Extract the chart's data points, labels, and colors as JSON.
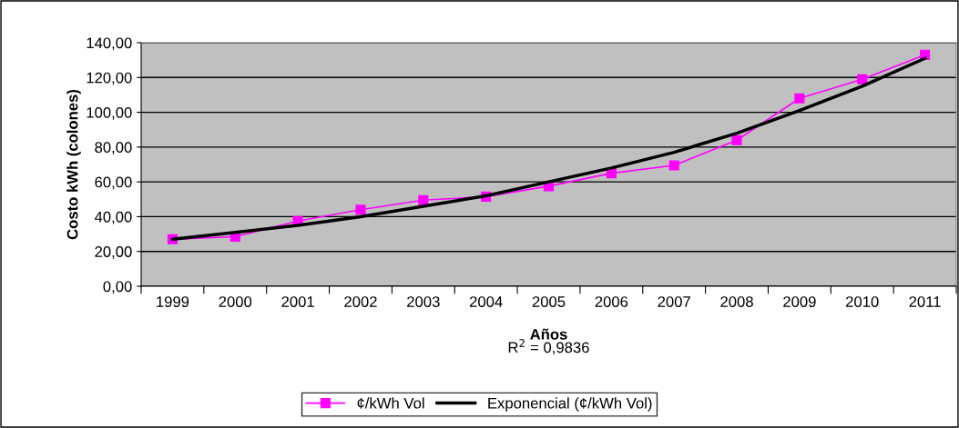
{
  "chart_data": {
    "type": "line",
    "xlabel": "Años",
    "ylabel": "Costo kWh (colones)",
    "categories": [
      "1999",
      "2000",
      "2001",
      "2002",
      "2003",
      "2004",
      "2005",
      "2006",
      "2007",
      "2008",
      "2009",
      "2010",
      "2011"
    ],
    "series": [
      {
        "name": "¢/kWh Vol",
        "color": "#ff00ff",
        "marker": "square",
        "values": [
          27,
          28.5,
          37.5,
          44,
          49.5,
          51.5,
          57.5,
          65,
          69.5,
          84,
          108,
          119,
          133
        ]
      },
      {
        "name": "Exponencial (¢/kWh Vol)",
        "color": "#000000",
        "marker": "none",
        "values": [
          27,
          31,
          35,
          40,
          46,
          52,
          60,
          68,
          77,
          88,
          101,
          115,
          131
        ]
      }
    ],
    "ylim": [
      0,
      140
    ],
    "yticks": [
      {
        "value": 0,
        "label": "0,00"
      },
      {
        "value": 20,
        "label": "20,00"
      },
      {
        "value": 40,
        "label": "40,00"
      },
      {
        "value": 60,
        "label": "60,00"
      },
      {
        "value": 80,
        "label": "80,00"
      },
      {
        "value": 100,
        "label": "100,00"
      },
      {
        "value": 120,
        "label": "120,00"
      },
      {
        "value": 140,
        "label": "140,00"
      }
    ],
    "grid": "y",
    "legend": "bottom",
    "annotations": [
      "R$^{2}$ = 0,9836"
    ]
  }
}
